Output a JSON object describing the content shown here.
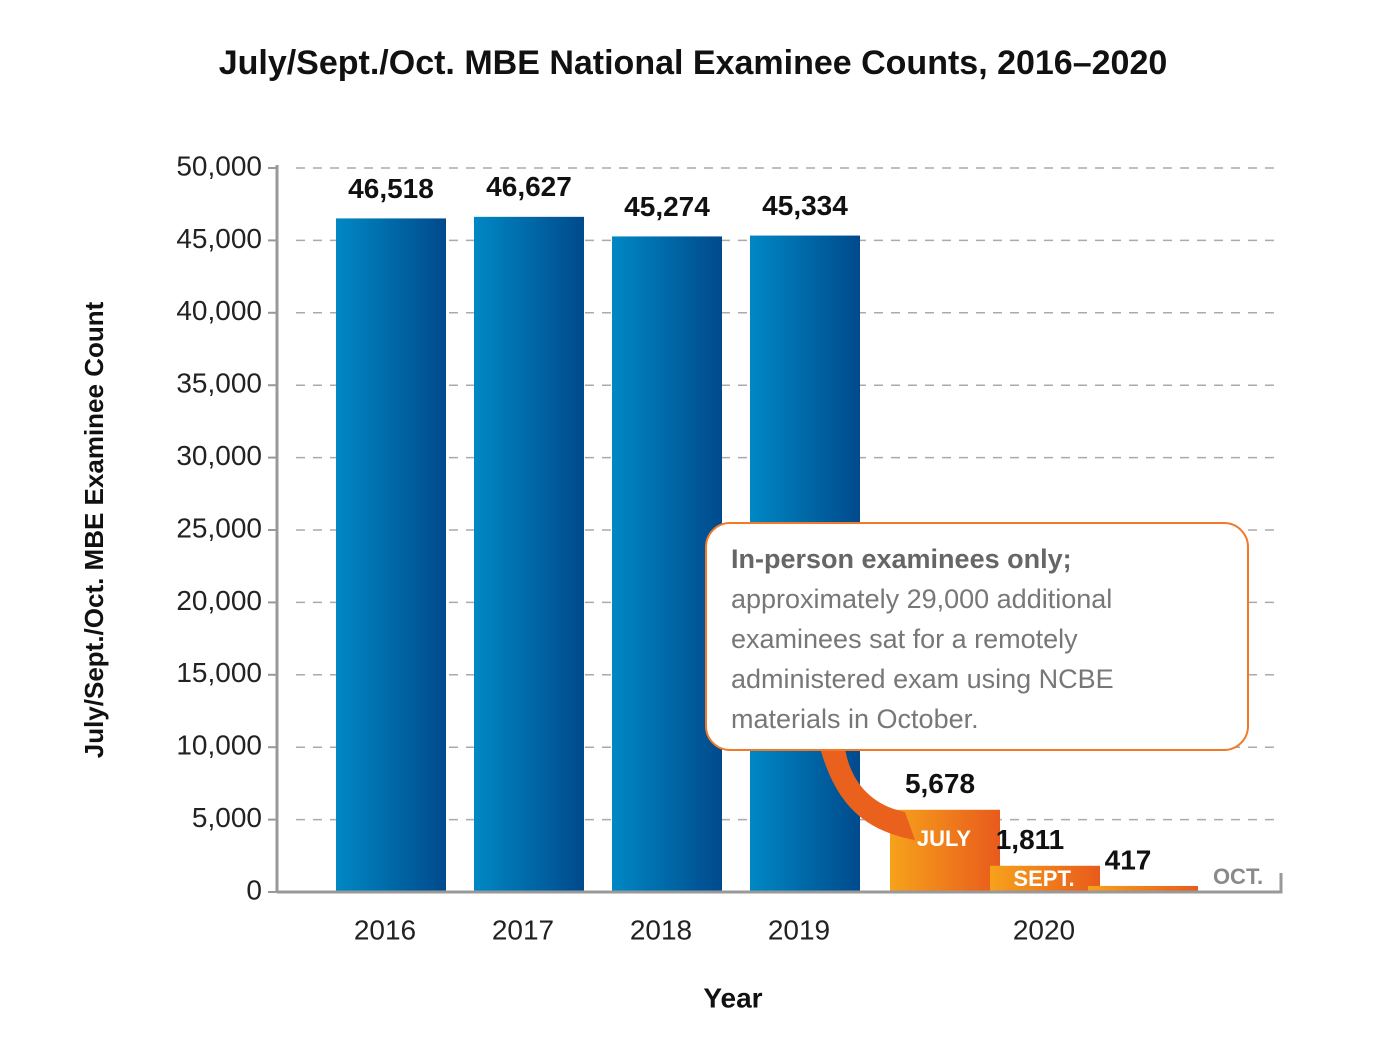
{
  "chart_data": {
    "type": "bar",
    "title": "July/Sept./Oct. MBE National Examinee Counts, 2016–2020",
    "x_label": "Year",
    "y_label": "July/Sept./Oct. MBE Examinee Count",
    "categories": [
      "2016",
      "2017",
      "2018",
      "2019",
      "2020"
    ],
    "values": [
      46518,
      46627,
      45274,
      45334,
      null
    ],
    "value_labels": [
      "46,518",
      "46,627",
      "45,274",
      "45,334",
      null
    ],
    "color": [
      "#0088c4",
      "#004a8c"
    ],
    "subbars": {
      "category": "2020",
      "labels": [
        "JULY",
        "SEPT.",
        "OCT."
      ],
      "values": [
        5678,
        1811,
        417
      ],
      "value_labels": [
        "5,678",
        "1,811",
        "417"
      ],
      "color": [
        "#f7a21b",
        "#e85a1c"
      ]
    },
    "annotation": {
      "bold": "In-person examinees only;",
      "lines": [
        "approximately 29,000 additional",
        "examinees sat for a remotely",
        "administered exam using NCBE",
        "materials in October."
      ]
    },
    "ylim": [
      0,
      50000
    ],
    "yticks": [
      0,
      {
        "value": 5000,
        "label": "5,000"
      },
      {
        "value": 10000,
        "label": "10,000"
      },
      {
        "value": 15000,
        "label": "15,000"
      },
      {
        "value": 20000,
        "label": "20,000"
      },
      {
        "value": 25000,
        "label": "25,000"
      },
      {
        "value": 30000,
        "label": "30,000"
      },
      {
        "value": 35000,
        "label": "35,000"
      },
      {
        "value": 40000,
        "label": "40,000"
      },
      {
        "value": 45000,
        "label": "45,000"
      },
      {
        "value": 50000,
        "label": "50,000"
      }
    ],
    "grid": true
  }
}
